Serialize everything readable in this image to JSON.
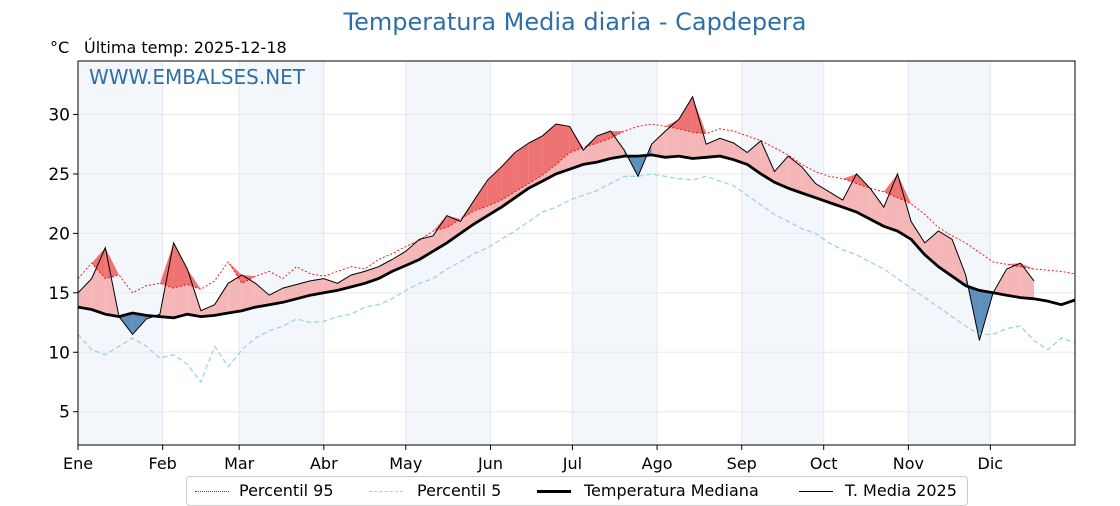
{
  "title": "Temperatura Media diaria - Capdepera",
  "unit_label": "°C",
  "last_temp": "Última temp: 2025-12-18",
  "watermark": "WWW.EMBALSES.NET",
  "colors": {
    "title": "#2f6fa8",
    "p95": "#ff0000",
    "p5": "#9fd3e3",
    "median": "#000000",
    "media2025": "#000000",
    "above_fill": "#f4b6b6",
    "above_p95_fill": "#ee7373",
    "below_fill": "#5f8fbd",
    "band": "#f3f7fb"
  },
  "legend": [
    {
      "label": "Percentil 95",
      "style": "dotted-red"
    },
    {
      "label": "Percentil 5",
      "style": "dashed-lightblue"
    },
    {
      "label": "Temperatura Mediana",
      "style": "thick-black"
    },
    {
      "label": "T. Media 2025",
      "style": "thin-black"
    }
  ],
  "chart_data": {
    "type": "line",
    "title": "Temperatura Media diaria - Capdepera",
    "xlabel": "",
    "ylabel": "°C",
    "ylim": [
      2.2,
      34.5
    ],
    "xlim": [
      1,
      366
    ],
    "grid": true,
    "legend_position": "bottom",
    "yticks": [
      5,
      10,
      15,
      20,
      25,
      30
    ],
    "xticks": [
      {
        "label": "Ene",
        "day": 1
      },
      {
        "label": "Feb",
        "day": 32
      },
      {
        "label": "Mar",
        "day": 60
      },
      {
        "label": "Abr",
        "day": 91
      },
      {
        "label": "May",
        "day": 121
      },
      {
        "label": "Jun",
        "day": 152
      },
      {
        "label": "Jul",
        "day": 182
      },
      {
        "label": "Ago",
        "day": 213
      },
      {
        "label": "Sep",
        "day": 244
      },
      {
        "label": "Oct",
        "day": 274
      },
      {
        "label": "Nov",
        "day": 305
      },
      {
        "label": "Dic",
        "day": 335
      }
    ],
    "x": [
      1,
      6,
      11,
      16,
      21,
      26,
      31,
      36,
      41,
      46,
      51,
      56,
      61,
      66,
      71,
      76,
      81,
      86,
      91,
      96,
      101,
      106,
      111,
      116,
      121,
      126,
      131,
      136,
      141,
      146,
      151,
      156,
      161,
      166,
      171,
      176,
      181,
      186,
      191,
      196,
      201,
      206,
      211,
      216,
      221,
      226,
      231,
      236,
      241,
      246,
      251,
      256,
      261,
      266,
      271,
      276,
      281,
      286,
      291,
      296,
      301,
      306,
      311,
      316,
      321,
      326,
      331,
      336,
      341,
      346,
      351,
      356,
      361,
      366
    ],
    "series": [
      {
        "name": "Percentil 95",
        "values": [
          16.2,
          17.5,
          16.2,
          16.5,
          15.0,
          15.6,
          15.8,
          15.4,
          15.7,
          15.3,
          16.0,
          17.6,
          15.8,
          16.4,
          16.8,
          16.2,
          17.2,
          16.6,
          16.4,
          16.8,
          17.2,
          17.0,
          17.8,
          18.3,
          18.9,
          19.4,
          20.2,
          20.5,
          21.2,
          21.9,
          22.3,
          22.8,
          23.5,
          24.2,
          24.9,
          25.8,
          26.8,
          27.2,
          27.6,
          28.0,
          28.6,
          29.0,
          29.2,
          29.0,
          28.8,
          28.5,
          28.4,
          28.8,
          28.6,
          28.2,
          27.8,
          27.2,
          26.6,
          25.8,
          25.2,
          24.8,
          24.6,
          24.2,
          23.8,
          23.5,
          23.0,
          22.5,
          21.6,
          20.5,
          19.8,
          19.2,
          18.4,
          17.6,
          17.4,
          17.2,
          17.0,
          16.9,
          16.8,
          16.6
        ]
      },
      {
        "name": "Percentil 5",
        "values": [
          11.5,
          10.2,
          9.8,
          10.5,
          11.2,
          10.5,
          9.5,
          9.8,
          9.0,
          7.5,
          10.5,
          8.8,
          10.2,
          11.2,
          11.8,
          12.2,
          12.8,
          12.5,
          12.6,
          13.0,
          13.2,
          13.8,
          14.0,
          14.5,
          15.2,
          15.8,
          16.2,
          17.0,
          17.6,
          18.3,
          18.8,
          19.5,
          20.2,
          21.0,
          21.8,
          22.2,
          22.8,
          23.2,
          23.6,
          24.2,
          24.8,
          24.8,
          25.0,
          24.8,
          24.6,
          24.5,
          24.8,
          24.4,
          24.0,
          23.2,
          22.4,
          21.6,
          21.0,
          20.4,
          20.0,
          19.2,
          18.6,
          18.2,
          17.6,
          17.0,
          16.2,
          15.4,
          14.6,
          13.8,
          13.0,
          12.2,
          11.5,
          11.5,
          12.0,
          12.2,
          11.0,
          10.2,
          11.2,
          10.8
        ]
      },
      {
        "name": "Temperatura Mediana",
        "values": [
          13.8,
          13.6,
          13.2,
          13.0,
          13.3,
          13.1,
          13.0,
          12.9,
          13.2,
          13.0,
          13.1,
          13.3,
          13.5,
          13.8,
          14.0,
          14.2,
          14.5,
          14.8,
          15.0,
          15.2,
          15.5,
          15.8,
          16.2,
          16.8,
          17.3,
          17.8,
          18.5,
          19.2,
          20.0,
          20.8,
          21.5,
          22.2,
          23.0,
          23.8,
          24.4,
          25.0,
          25.4,
          25.8,
          26.0,
          26.3,
          26.5,
          26.5,
          26.6,
          26.4,
          26.5,
          26.3,
          26.4,
          26.5,
          26.2,
          25.8,
          25.0,
          24.3,
          23.8,
          23.4,
          23.0,
          22.6,
          22.2,
          21.8,
          21.2,
          20.6,
          20.2,
          19.5,
          18.2,
          17.2,
          16.4,
          15.6,
          15.2,
          15.0,
          14.8,
          14.6,
          14.5,
          14.3,
          14.0,
          14.4
        ]
      },
      {
        "name": "T. Media 2025",
        "values": [
          15.0,
          16.2,
          18.8,
          13.0,
          11.5,
          12.8,
          13.2,
          19.2,
          17.0,
          13.5,
          14.0,
          15.8,
          16.5,
          15.8,
          14.8,
          15.4,
          15.7,
          16.0,
          16.2,
          15.8,
          16.5,
          16.8,
          17.2,
          17.8,
          18.5,
          19.5,
          19.8,
          21.5,
          21.0,
          22.8,
          24.5,
          25.6,
          26.8,
          27.6,
          28.2,
          29.2,
          29.0,
          27.0,
          28.2,
          28.6,
          27.0,
          24.8,
          27.5,
          28.6,
          29.6,
          31.5,
          27.5,
          28.0,
          27.6,
          26.8,
          27.8,
          25.2,
          26.5,
          25.6,
          24.2,
          23.5,
          22.8,
          25.0,
          23.8,
          22.2,
          25.0,
          21.0,
          19.2,
          20.2,
          19.5,
          16.5,
          11.0,
          15.0,
          17.0,
          17.5,
          16.0,
          null,
          null,
          null
        ]
      }
    ]
  }
}
